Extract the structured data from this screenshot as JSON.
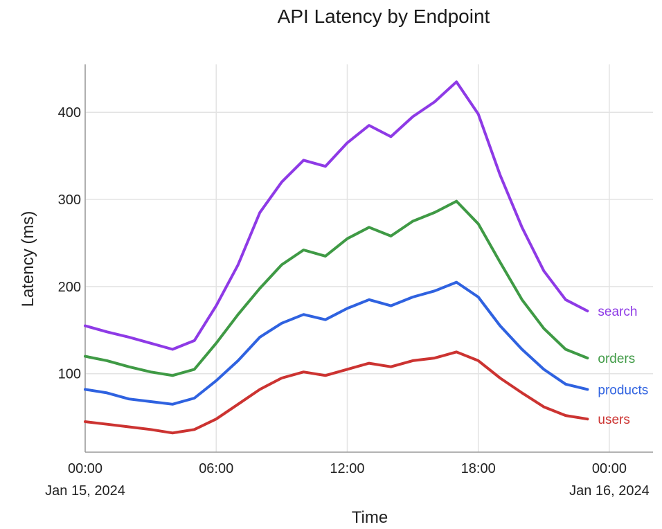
{
  "chart_data": {
    "type": "line",
    "title": "API Latency by Endpoint",
    "xlabel": "Time",
    "ylabel": "Latency (ms)",
    "x_hours": [
      0,
      1,
      2,
      3,
      4,
      5,
      6,
      7,
      8,
      9,
      10,
      11,
      12,
      13,
      14,
      15,
      16,
      17,
      18,
      19,
      20,
      21,
      22,
      23
    ],
    "xlim": [
      0,
      26
    ],
    "ylim": [
      10,
      455
    ],
    "x_ticks": [
      {
        "hour": 0,
        "label": "00:00",
        "sublabel": "Jan 15, 2024"
      },
      {
        "hour": 6,
        "label": "06:00",
        "sublabel": ""
      },
      {
        "hour": 12,
        "label": "12:00",
        "sublabel": ""
      },
      {
        "hour": 18,
        "label": "18:00",
        "sublabel": ""
      },
      {
        "hour": 24,
        "label": "00:00",
        "sublabel": "Jan 16, 2024"
      }
    ],
    "y_ticks": [
      100,
      200,
      300,
      400
    ],
    "grid": true,
    "series": [
      {
        "name": "search",
        "color": "#8e3ae6",
        "values": [
          155,
          148,
          142,
          135,
          128,
          138,
          178,
          225,
          285,
          320,
          345,
          338,
          365,
          385,
          372,
          395,
          412,
          435,
          398,
          328,
          268,
          218,
          185,
          172
        ]
      },
      {
        "name": "orders",
        "color": "#3f9a45",
        "values": [
          120,
          115,
          108,
          102,
          98,
          105,
          135,
          168,
          198,
          225,
          242,
          235,
          255,
          268,
          258,
          275,
          285,
          298,
          272,
          228,
          185,
          152,
          128,
          118
        ]
      },
      {
        "name": "products",
        "color": "#2f62e0",
        "values": [
          82,
          78,
          71,
          68,
          65,
          72,
          92,
          115,
          142,
          158,
          168,
          162,
          175,
          185,
          178,
          188,
          195,
          205,
          188,
          155,
          128,
          105,
          88,
          82
        ]
      },
      {
        "name": "users",
        "color": "#cc3331",
        "values": [
          45,
          42,
          39,
          36,
          32,
          36,
          48,
          65,
          82,
          95,
          102,
          98,
          105,
          112,
          108,
          115,
          118,
          125,
          115,
          95,
          78,
          62,
          52,
          48
        ]
      }
    ]
  }
}
